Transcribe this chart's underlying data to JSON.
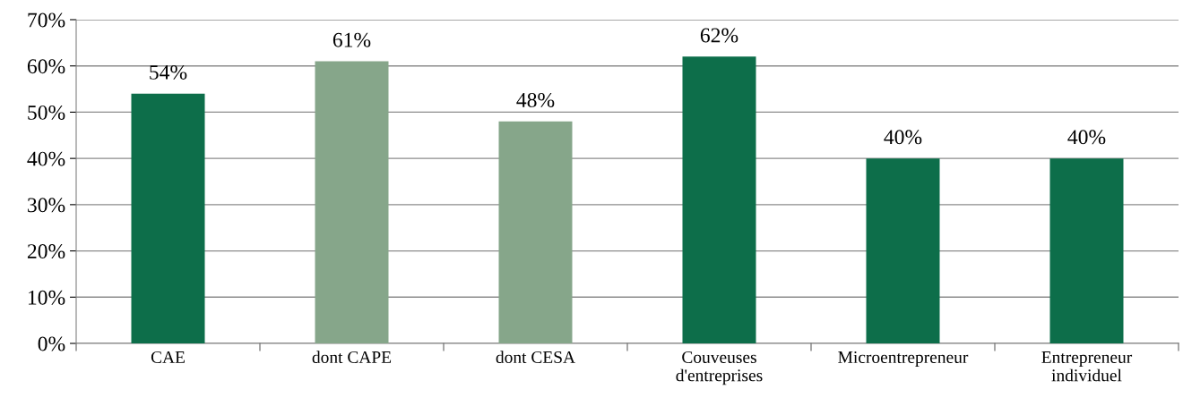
{
  "chart_data": {
    "type": "bar",
    "categories": [
      "CAE",
      "dont CAPE",
      "dont CESA",
      "Couveuses\nd'entreprises",
      "Microentrepreneur",
      "Entrepreneur\nindividuel"
    ],
    "values": [
      54,
      61,
      48,
      62,
      40,
      40
    ],
    "colors": [
      "#0d6e4a",
      "#86a68a",
      "#86a68a",
      "#0d6e4a",
      "#0d6e4a",
      "#0d6e4a"
    ],
    "value_labels": [
      "54%",
      "61%",
      "48%",
      "62%",
      "40%",
      "40%"
    ],
    "ylim": [
      0,
      70
    ],
    "yticks": [
      {
        "value": 0,
        "label": "0%"
      },
      {
        "value": 10,
        "label": "10%"
      },
      {
        "value": 20,
        "label": "20%"
      },
      {
        "value": 30,
        "label": "30%"
      },
      {
        "value": 40,
        "label": "40%"
      },
      {
        "value": 50,
        "label": "50%"
      },
      {
        "value": 60,
        "label": "60%"
      },
      {
        "value": 70,
        "label": "70%"
      }
    ],
    "grid": "y"
  }
}
